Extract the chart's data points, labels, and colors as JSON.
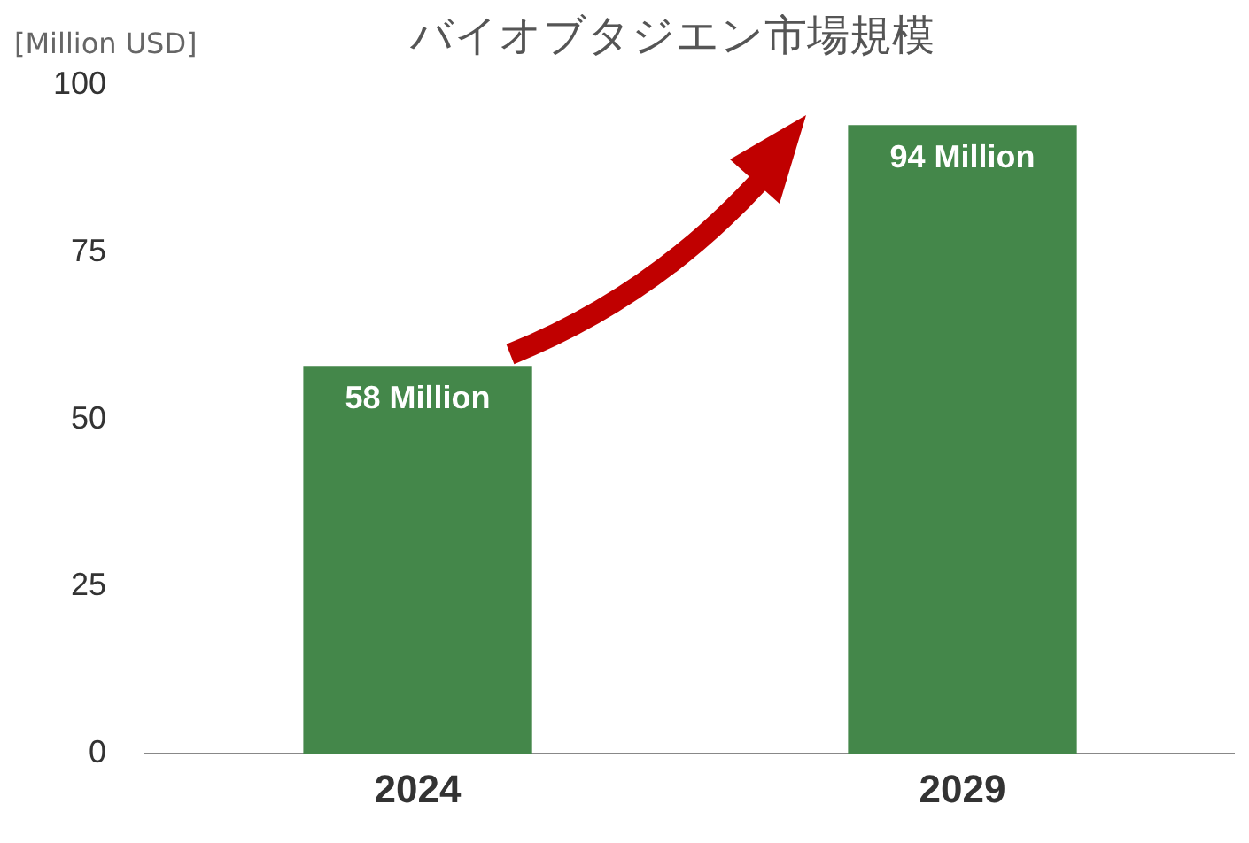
{
  "chart_data": {
    "type": "bar",
    "title": "バイオブタジエン市場規模",
    "ylabel": "[Million USD]",
    "categories": [
      "2024",
      "2029"
    ],
    "values": [
      58,
      94
    ],
    "color": "#44874a",
    "value_labels": [
      "58 Million",
      "94 Million"
    ],
    "ylim": [
      0,
      100
    ],
    "yticks": [
      0,
      25,
      50,
      75,
      100
    ],
    "grid": false,
    "legend": false
  }
}
